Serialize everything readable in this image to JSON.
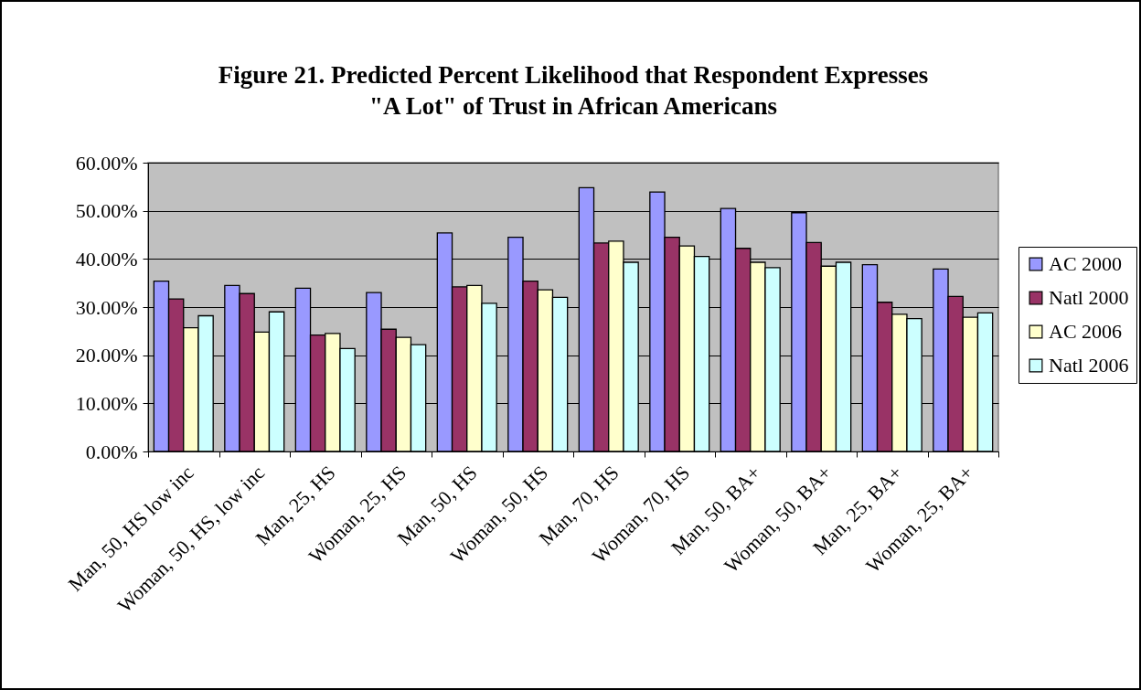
{
  "chart_data": {
    "type": "bar",
    "title": "Figure 21. Predicted Percent Likelihood that Respondent Expresses\n\"A Lot\" of Trust in African Americans",
    "categories": [
      "Man, 50, HS low inc",
      "Woman, 50, HS, low inc",
      "Man, 25, HS",
      "Woman, 25, HS",
      "Man, 50, HS",
      "Woman, 50, HS",
      "Man, 70, HS",
      "Woman, 70, HS",
      "Man, 50, BA+",
      "Woman, 50, BA+",
      "Man, 25, BA+",
      "Woman, 25, BA+"
    ],
    "series": [
      {
        "name": "AC 2000",
        "color": "#9999ff",
        "values": [
          35.4,
          34.5,
          33.9,
          33.0,
          45.4,
          44.5,
          54.8,
          53.9,
          50.5,
          49.6,
          38.8,
          37.9
        ]
      },
      {
        "name": "Natl 2000",
        "color": "#993366",
        "values": [
          31.7,
          32.8,
          24.2,
          25.4,
          34.2,
          35.4,
          43.3,
          44.5,
          42.2,
          43.4,
          31.0,
          32.2
        ]
      },
      {
        "name": "AC 2006",
        "color": "#ffffcc",
        "values": [
          25.7,
          24.8,
          24.5,
          23.7,
          34.5,
          33.6,
          43.7,
          42.7,
          39.3,
          38.5,
          28.5,
          27.9
        ]
      },
      {
        "name": "Natl 2006",
        "color": "#ccffff",
        "values": [
          28.2,
          29.0,
          21.4,
          22.2,
          30.8,
          32.0,
          39.3,
          40.5,
          38.2,
          39.3,
          27.6,
          28.8
        ]
      }
    ],
    "ylim": [
      0,
      60
    ],
    "yticks": [
      {
        "value": 0,
        "label": "0.00%"
      },
      {
        "value": 10,
        "label": "10.00%"
      },
      {
        "value": 20,
        "label": "20.00%"
      },
      {
        "value": 30,
        "label": "30.00%"
      },
      {
        "value": 40,
        "label": "40.00%"
      },
      {
        "value": 50,
        "label": "50.00%"
      },
      {
        "value": 60,
        "label": "60.00%"
      }
    ],
    "grid": "y",
    "legend": "right"
  }
}
